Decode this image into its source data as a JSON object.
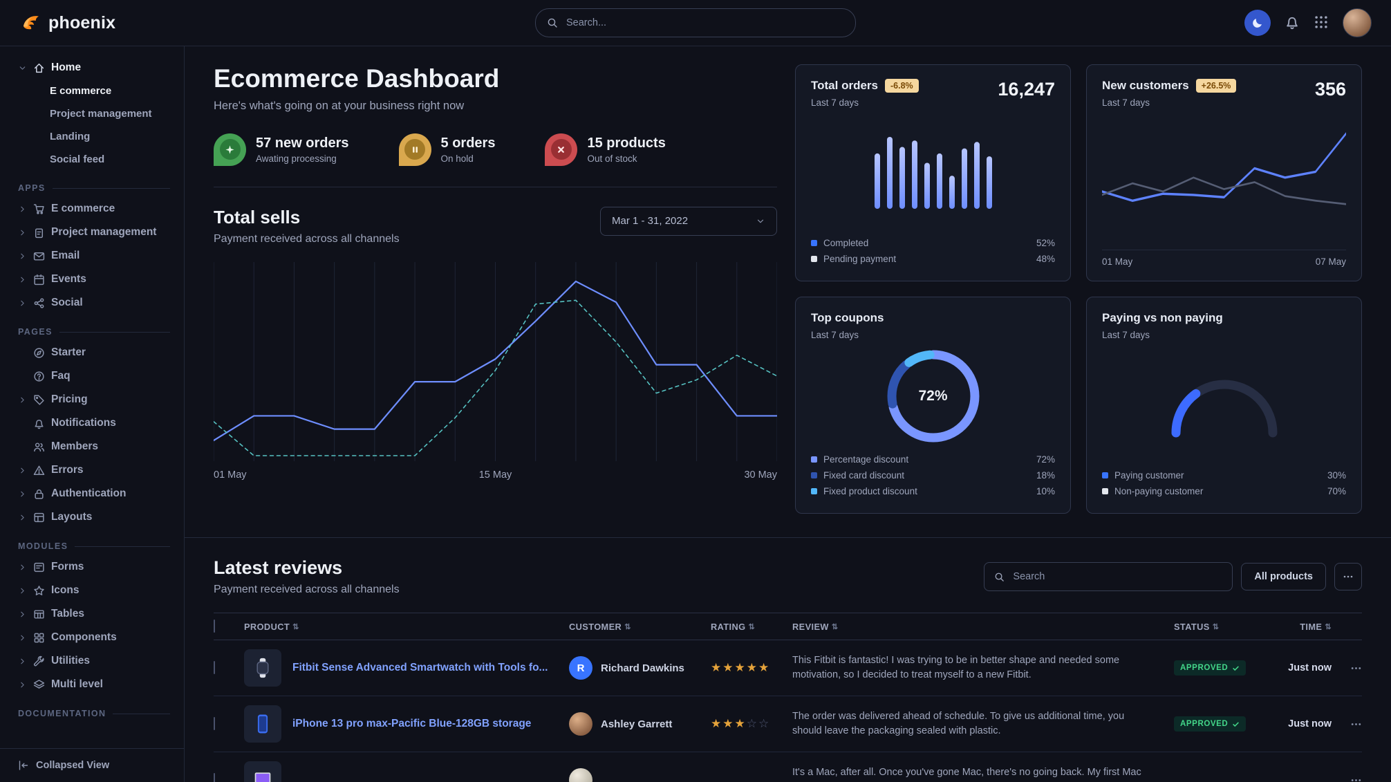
{
  "brand": {
    "name": "phoenix"
  },
  "navbar": {
    "search_placeholder": "Search..."
  },
  "sidebar": {
    "footer_label": "Collapsed View",
    "sections": [
      {
        "label": "",
        "items": [
          {
            "label": "Home",
            "icon": "home",
            "caret": "down",
            "active": true,
            "children": [
              {
                "label": "E commerce",
                "active": true
              },
              {
                "label": "Project management",
                "active": false
              },
              {
                "label": "Landing",
                "active": false
              },
              {
                "label": "Social feed",
                "active": false
              }
            ]
          }
        ]
      },
      {
        "label": "APPS",
        "items": [
          {
            "label": "E commerce",
            "icon": "cart",
            "caret": "right"
          },
          {
            "label": "Project management",
            "icon": "clipboard",
            "caret": "right"
          },
          {
            "label": "Email",
            "icon": "mail",
            "caret": "right"
          },
          {
            "label": "Events",
            "icon": "calendar",
            "caret": "right"
          },
          {
            "label": "Social",
            "icon": "share",
            "caret": "right"
          }
        ]
      },
      {
        "label": "PAGES",
        "items": [
          {
            "label": "Starter",
            "icon": "compass"
          },
          {
            "label": "Faq",
            "icon": "question"
          },
          {
            "label": "Pricing",
            "icon": "tag",
            "caret": "right"
          },
          {
            "label": "Notifications",
            "icon": "bell"
          },
          {
            "label": "Members",
            "icon": "users"
          },
          {
            "label": "Errors",
            "icon": "alert",
            "caret": "right"
          },
          {
            "label": "Authentication",
            "icon": "lock",
            "caret": "right"
          },
          {
            "label": "Layouts",
            "icon": "layout",
            "caret": "right"
          }
        ]
      },
      {
        "label": "MODULES",
        "items": [
          {
            "label": "Forms",
            "icon": "form",
            "caret": "right"
          },
          {
            "label": "Icons",
            "icon": "shapes",
            "caret": "right"
          },
          {
            "label": "Tables",
            "icon": "table",
            "caret": "right"
          },
          {
            "label": "Components",
            "icon": "components",
            "caret": "right"
          },
          {
            "label": "Utilities",
            "icon": "utilities",
            "caret": "right"
          },
          {
            "label": "Multi level",
            "icon": "layers",
            "caret": "right"
          }
        ]
      },
      {
        "label": "DOCUMENTATION",
        "items": []
      }
    ]
  },
  "main": {
    "header": {
      "title": "Ecommerce Dashboard",
      "subtitle": "Here's what's going on at your business right now"
    },
    "stats": [
      {
        "value": "57 new orders",
        "caption": "Awating processing",
        "icon": "star-burst",
        "color": "green"
      },
      {
        "value": "5 orders",
        "caption": "On hold",
        "icon": "pause",
        "color": "yellow"
      },
      {
        "value": "15 products",
        "caption": "Out of stock",
        "icon": "x",
        "color": "red"
      }
    ],
    "total_sells": {
      "title": "Total sells",
      "subtitle": "Payment received across all channels",
      "date_range": "Mar 1 - 31, 2022"
    }
  },
  "cards": {
    "total_orders": {
      "title": "Total orders",
      "badge": "-6.8%",
      "period": "Last 7 days",
      "value": "16,247",
      "legend": [
        {
          "label": "Completed",
          "value": "52%",
          "color": "#3874ff"
        },
        {
          "label": "Pending payment",
          "value": "48%",
          "color": "#e3e6ed"
        }
      ]
    },
    "new_customers": {
      "title": "New customers",
      "badge": "+26.5%",
      "period": "Last 7 days",
      "value": "356"
    },
    "top_coupons": {
      "title": "Top coupons",
      "period": "Last 7 days",
      "legend": [
        {
          "label": "Percentage discount",
          "value": "72%",
          "color": "#7a96ff"
        },
        {
          "label": "Fixed card discount",
          "value": "18%",
          "color": "#2f54b0"
        },
        {
          "label": "Fixed product discount",
          "value": "10%",
          "color": "#52b7f9"
        }
      ]
    },
    "paying": {
      "title": "Paying vs non paying",
      "period": "Last 7 days",
      "legend": [
        {
          "label": "Paying customer",
          "value": "30%",
          "color": "#3874ff"
        },
        {
          "label": "Non-paying customer",
          "value": "70%",
          "color": "#e3e6ed"
        }
      ]
    }
  },
  "chart_data": [
    {
      "id": "total-sells",
      "type": "line",
      "title": "Total sells",
      "x_ticks": [
        "01 May",
        "15 May",
        "30 May"
      ],
      "grid": "vertical",
      "ylim": [
        0,
        100
      ],
      "series": [
        {
          "name": "current",
          "style": "solid",
          "color": "#6e8eff",
          "width": 2.2,
          "values": [
            8,
            21,
            21,
            14,
            14,
            39,
            39,
            51,
            71,
            92,
            81,
            48,
            48,
            21,
            21
          ]
        },
        {
          "name": "previous",
          "style": "dashed",
          "color": "#56c2c2",
          "width": 1.6,
          "values": [
            18,
            0,
            0,
            0,
            0,
            0,
            20,
            45,
            80,
            82,
            60,
            33,
            40,
            53,
            42
          ]
        }
      ]
    },
    {
      "id": "total-orders",
      "type": "bar",
      "color": "#8ea6ff",
      "values": [
        77,
        100,
        86,
        95,
        64,
        77,
        46,
        84,
        93,
        73
      ],
      "completed_pct": 52,
      "pending_pct": 48
    },
    {
      "id": "new-customers",
      "type": "line",
      "x_ticks": [
        "01 May",
        "07 May"
      ],
      "series": [
        {
          "name": "this week",
          "style": "solid",
          "color": "#5e82ff",
          "width": 2,
          "values": [
            38,
            30,
            36,
            35,
            33,
            58,
            50,
            55,
            88
          ]
        },
        {
          "name": "last week",
          "style": "solid",
          "color": "#555d74",
          "width": 1.6,
          "values": [
            35,
            45,
            38,
            50,
            40,
            46,
            34,
            30,
            27
          ]
        }
      ]
    },
    {
      "id": "top-coupons",
      "type": "donut",
      "center_label": "72%",
      "slices": [
        {
          "label": "Percentage discount",
          "value": 72,
          "color": "#7a96ff"
        },
        {
          "label": "Fixed card discount",
          "value": 18,
          "color": "#2f54b0"
        },
        {
          "label": "Fixed product discount",
          "value": 10,
          "color": "#52b7f9"
        }
      ]
    },
    {
      "id": "paying-gauge",
      "type": "gauge",
      "value_color": "#3d6bff",
      "track_color": "#272e44",
      "segments": [
        {
          "label": "Paying customer",
          "value": 30,
          "color": "#3874ff"
        },
        {
          "label": "Non-paying customer",
          "value": 70,
          "color": "#e3e6ed"
        }
      ]
    }
  ],
  "reviews": {
    "title": "Latest reviews",
    "subtitle": "Payment received across all channels",
    "search_placeholder": "Search",
    "filter_button": "All products",
    "columns": [
      "PRODUCT",
      "CUSTOMER",
      "RATING",
      "REVIEW",
      "STATUS",
      "TIME"
    ],
    "rows": [
      {
        "product": "Fitbit Sense Advanced Smartwatch with Tools fo...",
        "thumb": "watch",
        "customer": "Richard Dawkins",
        "avatar_type": "initial",
        "avatar_initial": "R",
        "rating": 5,
        "review": "This Fitbit is fantastic! I was trying to be in better shape and needed some motivation, so I decided to treat myself to a new Fitbit.",
        "status": "APPROVED",
        "time": "Just now"
      },
      {
        "product": "iPhone 13 pro max-Pacific Blue-128GB storage",
        "thumb": "phone",
        "customer": "Ashley Garrett",
        "avatar_type": "photo-a",
        "avatar_initial": "",
        "rating": 3,
        "review": "The order was delivered ahead of schedule. To give us additional time, you should leave the packaging sealed with plastic.",
        "status": "APPROVED",
        "time": "Just now"
      },
      {
        "product": "",
        "thumb": "laptop",
        "customer": "",
        "avatar_type": "photo-b",
        "avatar_initial": "",
        "rating": null,
        "review": "It's a Mac, after all. Once you've gone Mac, there's no going back. My first Mac lasted...",
        "status": null,
        "time": null
      }
    ]
  }
}
